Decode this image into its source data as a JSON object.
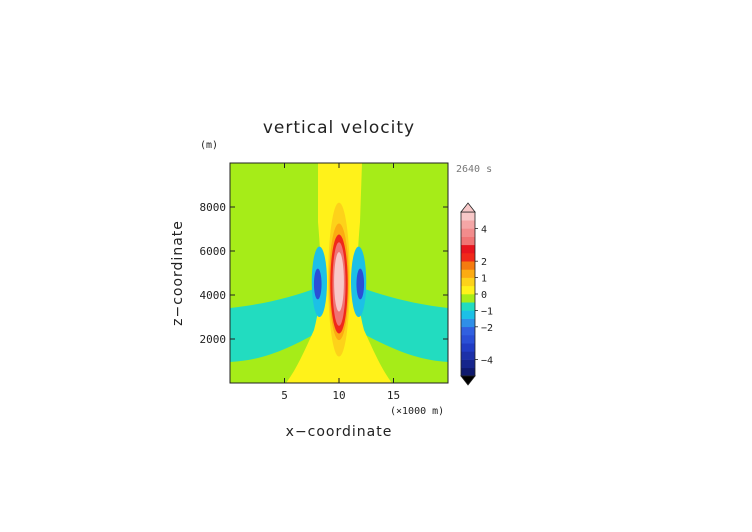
{
  "chart_data": {
    "type": "heatmap",
    "title": "vertical velocity",
    "time_label": "2640 s",
    "xlabel": "x−coordinate",
    "ylabel": "z−coordinate",
    "x_unit_label": "(×1000 m)",
    "y_unit_label": "(m)",
    "xlim": [
      0,
      20000
    ],
    "ylim": [
      0,
      10000
    ],
    "x_ticks": [
      {
        "value": 5000,
        "label": "5"
      },
      {
        "value": 10000,
        "label": "10"
      },
      {
        "value": 15000,
        "label": "15"
      }
    ],
    "y_ticks": [
      {
        "value": 2000,
        "label": "2000"
      },
      {
        "value": 4000,
        "label": "4000"
      },
      {
        "value": 6000,
        "label": "6000"
      },
      {
        "value": 8000,
        "label": "8000"
      }
    ],
    "colorbar": {
      "range": [
        -5,
        5
      ],
      "levels": [
        {
          "from": -5.0,
          "to": -4.5,
          "color": "#0f1a6e"
        },
        {
          "from": -4.5,
          "to": -4.0,
          "color": "#16258c"
        },
        {
          "from": -4.0,
          "to": -3.5,
          "color": "#1c30a8"
        },
        {
          "from": -3.5,
          "to": -3.0,
          "color": "#213cc4"
        },
        {
          "from": -3.0,
          "to": -2.5,
          "color": "#2a4fd6"
        },
        {
          "from": -2.5,
          "to": -2.0,
          "color": "#3160e0"
        },
        {
          "from": -2.0,
          "to": -1.5,
          "color": "#2f8fe8"
        },
        {
          "from": -1.5,
          "to": -1.0,
          "color": "#1cc0e6"
        },
        {
          "from": -1.0,
          "to": -0.5,
          "color": "#22dcc0"
        },
        {
          "from": -0.5,
          "to": 0.0,
          "color": "#a6ec18"
        },
        {
          "from": 0.0,
          "to": 0.5,
          "color": "#fff21a"
        },
        {
          "from": 0.5,
          "to": 1.0,
          "color": "#fdd21a"
        },
        {
          "from": 1.0,
          "to": 1.5,
          "color": "#fcab12"
        },
        {
          "from": 1.5,
          "to": 2.0,
          "color": "#f57b0f"
        },
        {
          "from": 2.0,
          "to": 2.5,
          "color": "#f0281a"
        },
        {
          "from": 2.5,
          "to": 3.0,
          "color": "#e8141e"
        },
        {
          "from": 3.0,
          "to": 3.5,
          "color": "#f07474"
        },
        {
          "from": 3.5,
          "to": 4.0,
          "color": "#f28c8c"
        },
        {
          "from": 4.0,
          "to": 4.5,
          "color": "#f4a6a6"
        },
        {
          "from": 4.5,
          "to": 5.0,
          "color": "#f8c8c8"
        }
      ],
      "labels": [
        {
          "value": 4,
          "label": "4"
        },
        {
          "value": 2,
          "label": "2"
        },
        {
          "value": 1,
          "label": "1"
        },
        {
          "value": 0,
          "label": "0"
        },
        {
          "value": -1,
          "label": "−1"
        },
        {
          "value": -2,
          "label": "−2"
        },
        {
          "value": -4,
          "label": "−4"
        }
      ],
      "over_color": "#f8c8c8",
      "under_color": "#000000"
    },
    "background_value": -0.2,
    "features": [
      {
        "name": "updraft-core",
        "shape": "ellipse",
        "center": [
          10000,
          4600
        ],
        "radius": [
          450,
          1350
        ],
        "value": 4.8
      },
      {
        "name": "updraft-ring-3",
        "shape": "ellipse",
        "center": [
          10000,
          4500
        ],
        "radius": [
          600,
          1900
        ],
        "value": 3.2
      },
      {
        "name": "updraft-ring-2",
        "shape": "ellipse",
        "center": [
          10000,
          4500
        ],
        "radius": [
          800,
          2250
        ],
        "value": 2.2
      },
      {
        "name": "updraft-ring-1",
        "shape": "ellipse",
        "center": [
          10000,
          4600
        ],
        "radius": [
          900,
          2650
        ],
        "value": 1.2
      },
      {
        "name": "updraft-ring-05",
        "shape": "ellipse",
        "center": [
          10000,
          4700
        ],
        "radius": [
          1000,
          3500
        ],
        "value": 0.7
      },
      {
        "name": "downdraft-left",
        "shape": "ellipse",
        "center": [
          8050,
          4500
        ],
        "radius": [
          350,
          700
        ],
        "value": -2.8
      },
      {
        "name": "downdraft-right",
        "shape": "ellipse",
        "center": [
          11950,
          4500
        ],
        "radius": [
          350,
          700
        ],
        "value": -2.8
      },
      {
        "name": "downdraft-left-outer",
        "shape": "ellipse",
        "center": [
          8200,
          4600
        ],
        "radius": [
          700,
          1600
        ],
        "value": -1.2
      },
      {
        "name": "downdraft-right-outer",
        "shape": "ellipse",
        "center": [
          11800,
          4600
        ],
        "radius": [
          700,
          1600
        ],
        "value": -1.2
      }
    ]
  }
}
